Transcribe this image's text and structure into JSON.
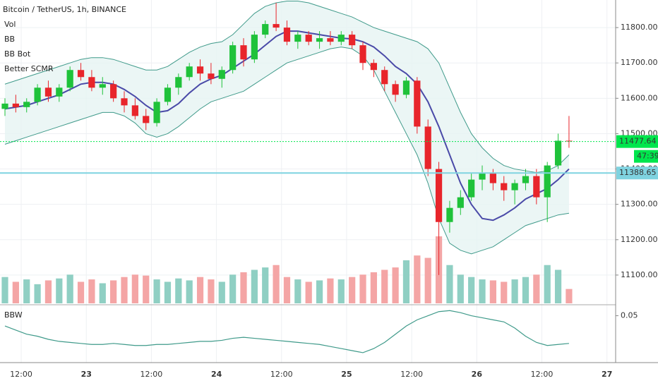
{
  "chart_data": {
    "type": "candlestick",
    "title": "Bitcoin / TetherUS, 1h, BINANCE",
    "indicators": [
      "Vol",
      "BB",
      "BB Bot",
      "Better SCMR"
    ],
    "up_color": "#1fc23a",
    "down_color": "#e8252b",
    "volume_up_color": "#8fcfc3",
    "volume_down_color": "#f4a5a5",
    "xlim": [
      8.09,
      121.6
    ],
    "xticks": [
      {
        "value": 12,
        "label": "12:00"
      },
      {
        "value": 24,
        "label": "23"
      },
      {
        "value": 36,
        "label": "12:00"
      },
      {
        "value": 48,
        "label": "24"
      },
      {
        "value": 60,
        "label": "12:00"
      },
      {
        "value": 72,
        "label": "25"
      },
      {
        "value": 84,
        "label": "12:00"
      },
      {
        "value": 96,
        "label": "26"
      },
      {
        "value": 108,
        "label": "12:00"
      },
      {
        "value": 120,
        "label": "27"
      }
    ],
    "ylim": [
      11020,
      11878
    ],
    "yticks": [
      {
        "value": 11100,
        "label": "11100.00"
      },
      {
        "value": 11200,
        "label": "11200.00"
      },
      {
        "value": 11300,
        "label": "11300.00"
      },
      {
        "value": 11400,
        "label": "11400.00"
      },
      {
        "value": 11500,
        "label": "11500.00"
      },
      {
        "value": 11600,
        "label": "11600.00"
      },
      {
        "value": 11700,
        "label": "11700.00"
      },
      {
        "value": 11800,
        "label": "11800.00"
      }
    ],
    "grid": true,
    "last_price": 11477.64,
    "last_price_color": "#00e64d",
    "countdown": "47:39",
    "level": 11388.65,
    "level_color": "#7fd3e0",
    "candles": {
      "x": [
        9,
        11,
        13,
        15,
        17,
        19,
        21,
        23,
        25,
        27,
        29,
        31,
        33,
        35,
        37,
        39,
        41,
        43,
        45,
        47,
        49,
        51,
        53,
        55,
        57,
        59,
        61,
        63,
        65,
        67,
        69,
        71,
        73,
        75,
        77,
        79,
        81,
        83,
        85,
        87,
        89,
        91,
        93,
        95,
        97,
        99,
        101,
        103,
        105,
        107,
        109,
        111,
        113
      ],
      "open": [
        11570,
        11585,
        11575,
        11590,
        11630,
        11605,
        11630,
        11680,
        11660,
        11630,
        11640,
        11600,
        11580,
        11550,
        11530,
        11590,
        11630,
        11660,
        11690,
        11670,
        11655,
        11680,
        11750,
        11710,
        11780,
        11810,
        11800,
        11760,
        11780,
        11760,
        11770,
        11760,
        11780,
        11750,
        11700,
        11680,
        11640,
        11610,
        11650,
        11520,
        11400,
        11250,
        11290,
        11320,
        11370,
        11390,
        11360,
        11340,
        11360,
        11380,
        11320,
        11410,
        11480
      ],
      "high": [
        11600,
        11610,
        11600,
        11640,
        11650,
        11640,
        11690,
        11700,
        11680,
        11660,
        11650,
        11620,
        11600,
        11570,
        11600,
        11640,
        11670,
        11700,
        11710,
        11700,
        11690,
        11760,
        11770,
        11790,
        11820,
        11870,
        11820,
        11790,
        11790,
        11790,
        11790,
        11790,
        11790,
        11760,
        11710,
        11690,
        11650,
        11660,
        11660,
        11540,
        11420,
        11310,
        11340,
        11390,
        11410,
        11400,
        11380,
        11370,
        11400,
        11400,
        11420,
        11500,
        11550
      ],
      "low": [
        11550,
        11560,
        11560,
        11580,
        11590,
        11590,
        11620,
        11650,
        11620,
        11610,
        11590,
        11560,
        11540,
        11510,
        11520,
        11580,
        11610,
        11650,
        11650,
        11640,
        11630,
        11670,
        11690,
        11700,
        11770,
        11790,
        11750,
        11740,
        11750,
        11740,
        11750,
        11750,
        11740,
        11680,
        11660,
        11620,
        11590,
        11600,
        11500,
        11380,
        11100,
        11220,
        11270,
        11310,
        11340,
        11340,
        11310,
        11300,
        11340,
        11300,
        11250,
        11400,
        11460
      ],
      "close": [
        11585,
        11575,
        11590,
        11630,
        11605,
        11630,
        11680,
        11660,
        11630,
        11640,
        11600,
        11580,
        11550,
        11530,
        11590,
        11630,
        11660,
        11690,
        11670,
        11655,
        11680,
        11750,
        11710,
        11780,
        11810,
        11800,
        11760,
        11780,
        11760,
        11770,
        11760,
        11780,
        11750,
        11700,
        11680,
        11640,
        11610,
        11650,
        11520,
        11400,
        11250,
        11290,
        11320,
        11370,
        11390,
        11360,
        11340,
        11360,
        11380,
        11320,
        11410,
        11480,
        11478
      ]
    },
    "volume": [
      55,
      45,
      50,
      40,
      48,
      52,
      60,
      45,
      50,
      42,
      48,
      55,
      60,
      58,
      50,
      45,
      52,
      48,
      55,
      50,
      45,
      60,
      65,
      70,
      75,
      80,
      55,
      50,
      45,
      48,
      52,
      50,
      55,
      60,
      65,
      70,
      75,
      90,
      100,
      95,
      140,
      80,
      60,
      55,
      50,
      48,
      45,
      50,
      55,
      60,
      80,
      70,
      30
    ],
    "lines": [
      {
        "color": "#4a4aa8",
        "width": 2,
        "values": [
          11570,
          11575,
          11580,
          11590,
          11600,
          11610,
          11625,
          11640,
          11645,
          11645,
          11640,
          11625,
          11605,
          11580,
          11560,
          11565,
          11585,
          11615,
          11640,
          11655,
          11665,
          11685,
          11705,
          11725,
          11750,
          11775,
          11790,
          11790,
          11785,
          11780,
          11775,
          11770,
          11768,
          11760,
          11745,
          11720,
          11690,
          11670,
          11640,
          11590,
          11520,
          11440,
          11360,
          11300,
          11260,
          11255,
          11270,
          11290,
          11315,
          11330,
          11345,
          11370,
          11400
        ]
      },
      {
        "color": "#3f9a8a",
        "width": 1,
        "values": [
          11640,
          11650,
          11660,
          11670,
          11680,
          11690,
          11700,
          11710,
          11715,
          11715,
          11710,
          11700,
          11690,
          11680,
          11680,
          11690,
          11710,
          11730,
          11745,
          11755,
          11760,
          11780,
          11810,
          11840,
          11860,
          11870,
          11875,
          11875,
          11870,
          11860,
          11850,
          11840,
          11830,
          11815,
          11800,
          11790,
          11780,
          11770,
          11760,
          11740,
          11700,
          11630,
          11560,
          11500,
          11460,
          11430,
          11410,
          11400,
          11395,
          11390,
          11395,
          11410,
          11440
        ]
      },
      {
        "color": "#3f9a8a",
        "width": 1,
        "values": [
          11470,
          11480,
          11490,
          11500,
          11510,
          11520,
          11530,
          11540,
          11550,
          11560,
          11560,
          11550,
          11530,
          11500,
          11490,
          11500,
          11520,
          11545,
          11570,
          11590,
          11600,
          11610,
          11620,
          11640,
          11660,
          11680,
          11700,
          11710,
          11720,
          11730,
          11740,
          11745,
          11740,
          11720,
          11680,
          11620,
          11560,
          11500,
          11440,
          11360,
          11260,
          11190,
          11170,
          11160,
          11170,
          11180,
          11200,
          11220,
          11240,
          11250,
          11260,
          11270,
          11275
        ]
      }
    ],
    "bbw": {
      "name": "BBW",
      "color": "#3f9a8a",
      "ylim": [
        0.005,
        0.06
      ],
      "yticks": [
        0.05
      ],
      "values": [
        0.04,
        0.036,
        0.032,
        0.03,
        0.027,
        0.025,
        0.024,
        0.023,
        0.022,
        0.022,
        0.023,
        0.022,
        0.021,
        0.021,
        0.022,
        0.022,
        0.023,
        0.024,
        0.025,
        0.025,
        0.026,
        0.028,
        0.029,
        0.028,
        0.027,
        0.026,
        0.025,
        0.024,
        0.023,
        0.022,
        0.02,
        0.018,
        0.016,
        0.014,
        0.018,
        0.024,
        0.032,
        0.04,
        0.046,
        0.05,
        0.054,
        0.055,
        0.053,
        0.05,
        0.048,
        0.046,
        0.044,
        0.038,
        0.03,
        0.024,
        0.021,
        0.022,
        0.023
      ]
    }
  }
}
